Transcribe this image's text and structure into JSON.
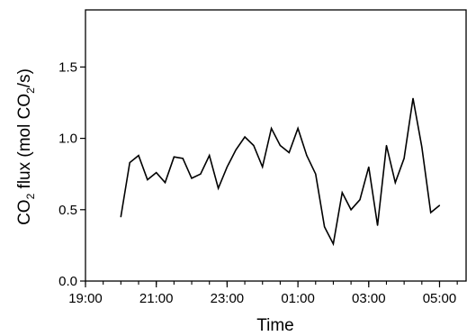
{
  "chart_data": {
    "type": "line",
    "title": "",
    "xlabel": "Time",
    "ylabel": {
      "prefix": "CO",
      "sub1": "2",
      "middle": " flux (mol CO",
      "sub2": "2",
      "suffix": "/s)"
    },
    "ylim": [
      0,
      1.9
    ],
    "yticks": [
      0.0,
      0.5,
      1.0,
      1.5
    ],
    "ytick_labels": [
      "0.0",
      "0.5",
      "1.0",
      "1.5"
    ],
    "xlim": [
      "19:00",
      "05:45"
    ],
    "xticks": [
      "19:00",
      "21:00",
      "23:00",
      "01:00",
      "03:00",
      "05:00"
    ],
    "x_minor_tick_interval_minutes": 30,
    "grid": false,
    "legend": "none",
    "line_color": "#000000",
    "series": [
      {
        "x": [
          "20:00",
          "20:15",
          "20:30",
          "20:45",
          "21:00",
          "21:15",
          "21:30",
          "21:45",
          "22:00",
          "22:15",
          "22:30",
          "22:45",
          "23:00",
          "23:15",
          "23:30",
          "23:45",
          "00:00",
          "00:15",
          "00:30",
          "00:45",
          "01:00",
          "01:15",
          "01:30",
          "01:45",
          "02:00",
          "02:15",
          "02:30",
          "02:45",
          "03:00",
          "03:15",
          "03:30",
          "03:45",
          "04:00",
          "04:15",
          "04:30",
          "04:45",
          "05:00"
        ],
        "y": [
          0.45,
          0.83,
          0.88,
          0.71,
          0.76,
          0.69,
          0.87,
          0.86,
          0.72,
          0.75,
          0.88,
          0.65,
          0.8,
          0.92,
          1.01,
          0.95,
          0.8,
          1.07,
          0.95,
          0.9,
          1.07,
          0.88,
          0.75,
          0.38,
          0.26,
          0.62,
          0.5,
          0.57,
          0.8,
          0.39,
          0.95,
          0.69,
          0.86,
          1.28,
          0.94,
          0.48,
          0.53
        ]
      }
    ]
  }
}
